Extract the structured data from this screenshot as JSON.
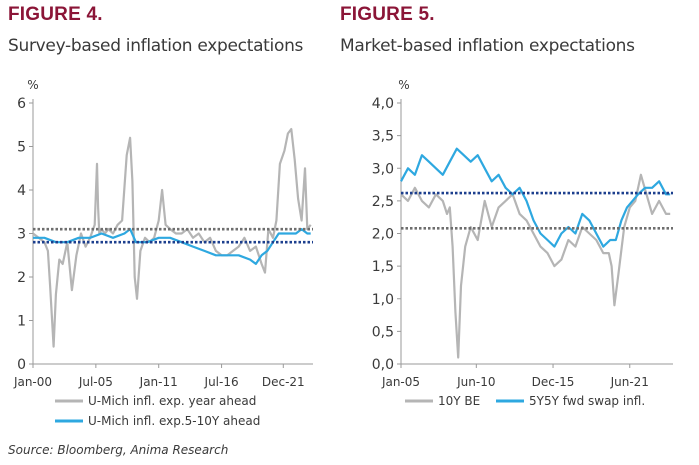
{
  "colors": {
    "brand": "#8b1537",
    "grey_series": "#b5b5b5",
    "blue_series": "#2ea8e0",
    "grey_ref": "#6e6e6e",
    "blue_ref": "#1c3f8e"
  },
  "source": "Source: Bloomberg, Anima Research",
  "chart_data": [
    {
      "type": "line",
      "figure_label": "FIGURE 4.",
      "title": "Survey-based inflation expectations",
      "ylabel": "%",
      "ylim": [
        0,
        6
      ],
      "yticks": [
        "0",
        "1",
        "2",
        "3",
        "4",
        "5",
        "6"
      ],
      "xlim": [
        2000,
        2024.5
      ],
      "xticks": [
        {
          "x": 2000,
          "label": "Jan-00"
        },
        {
          "x": 2005.5,
          "label": "Jul-05"
        },
        {
          "x": 2011,
          "label": "Jan-11"
        },
        {
          "x": 2016.5,
          "label": "Jul-16"
        },
        {
          "x": 2021.9,
          "label": "Dec-21"
        }
      ],
      "legend_position": "bottom",
      "series": [
        {
          "name": "U-Mich infl. exp. year ahead",
          "color": "#b5b5b5",
          "x": [
            2000.0,
            2000.5,
            2001.0,
            2001.3,
            2001.5,
            2001.8,
            2002.0,
            2002.3,
            2002.6,
            2003.0,
            2003.4,
            2003.8,
            2004.2,
            2004.6,
            2005.0,
            2005.4,
            2005.6,
            2005.7,
            2005.8,
            2006.0,
            2006.3,
            2006.6,
            2007.0,
            2007.4,
            2007.8,
            2008.2,
            2008.5,
            2008.7,
            2008.9,
            2009.1,
            2009.4,
            2009.8,
            2010.2,
            2010.6,
            2011.0,
            2011.3,
            2011.6,
            2012.0,
            2012.5,
            2013.0,
            2013.5,
            2014.0,
            2014.5,
            2015.0,
            2015.5,
            2016.0,
            2016.5,
            2017.0,
            2017.5,
            2018.0,
            2018.5,
            2019.0,
            2019.5,
            2020.0,
            2020.3,
            2020.6,
            2021.0,
            2021.3,
            2021.6,
            2022.0,
            2022.3,
            2022.6,
            2022.9,
            2023.2,
            2023.5,
            2023.8,
            2024.0,
            2024.3
          ],
          "values": [
            3.0,
            2.9,
            2.8,
            2.6,
            1.8,
            0.4,
            1.6,
            2.4,
            2.3,
            2.8,
            1.7,
            2.5,
            3.0,
            2.7,
            2.9,
            3.2,
            4.6,
            3.6,
            3.0,
            3.1,
            3.0,
            3.1,
            3.0,
            3.2,
            3.3,
            4.8,
            5.2,
            4.2,
            2.0,
            1.5,
            2.6,
            2.9,
            2.8,
            2.9,
            3.3,
            4.0,
            3.2,
            3.1,
            3.0,
            3.0,
            3.1,
            2.9,
            3.0,
            2.8,
            2.9,
            2.6,
            2.5,
            2.5,
            2.6,
            2.7,
            2.9,
            2.6,
            2.7,
            2.3,
            2.1,
            3.1,
            2.9,
            3.3,
            4.6,
            4.9,
            5.3,
            5.4,
            4.7,
            3.8,
            3.3,
            4.5,
            3.1,
            3.2
          ]
        },
        {
          "name": "U-Mich infl. exp.5-10Y ahead",
          "color": "#2ea8e0",
          "x": [
            2000.0,
            2001.0,
            2002.0,
            2003.0,
            2004.0,
            2005.0,
            2006.0,
            2007.0,
            2008.0,
            2008.5,
            2009.0,
            2010.0,
            2011.0,
            2012.0,
            2013.0,
            2014.0,
            2015.0,
            2016.0,
            2017.0,
            2018.0,
            2019.0,
            2019.5,
            2020.0,
            2020.5,
            2021.0,
            2021.5,
            2022.0,
            2022.5,
            2023.0,
            2023.5,
            2024.0,
            2024.3
          ],
          "values": [
            2.9,
            2.9,
            2.8,
            2.8,
            2.9,
            2.9,
            3.0,
            2.9,
            3.0,
            3.1,
            2.8,
            2.8,
            2.9,
            2.9,
            2.8,
            2.7,
            2.6,
            2.5,
            2.5,
            2.5,
            2.4,
            2.3,
            2.5,
            2.6,
            2.8,
            3.0,
            3.0,
            3.0,
            3.0,
            3.1,
            3.0,
            3.0
          ]
        }
      ],
      "reference_lines": [
        {
          "value": 3.1,
          "color": "#6e6e6e"
        },
        {
          "value": 2.8,
          "color": "#1c3f8e"
        }
      ]
    },
    {
      "type": "line",
      "figure_label": "FIGURE 5.",
      "title": "Market-based inflation expectations",
      "ylabel": "%",
      "ylim": [
        0,
        4
      ],
      "yticks": [
        "0,0",
        "0,5",
        "1,0",
        "1,5",
        "2,0",
        "2,5",
        "3,0",
        "3,5",
        "4,0"
      ],
      "xlim": [
        2005,
        2024.5
      ],
      "xticks": [
        {
          "x": 2005,
          "label": "Jan-05"
        },
        {
          "x": 2010.4,
          "label": "Jun-10"
        },
        {
          "x": 2015.9,
          "label": "Dec-15"
        },
        {
          "x": 2021.4,
          "label": "Jun-21"
        }
      ],
      "legend_position": "bottom",
      "series": [
        {
          "name": "10Y BE",
          "color": "#b5b5b5",
          "x": [
            2005.0,
            2005.5,
            2006.0,
            2006.5,
            2007.0,
            2007.5,
            2008.0,
            2008.3,
            2008.5,
            2008.7,
            2008.9,
            2009.1,
            2009.3,
            2009.6,
            2010.0,
            2010.5,
            2011.0,
            2011.5,
            2012.0,
            2012.5,
            2013.0,
            2013.5,
            2014.0,
            2014.5,
            2015.0,
            2015.5,
            2016.0,
            2016.5,
            2017.0,
            2017.5,
            2018.0,
            2018.5,
            2019.0,
            2019.5,
            2019.9,
            2020.1,
            2020.3,
            2020.6,
            2021.0,
            2021.4,
            2021.8,
            2022.2,
            2022.6,
            2023.0,
            2023.5,
            2024.0,
            2024.3
          ],
          "values": [
            2.6,
            2.5,
            2.7,
            2.5,
            2.4,
            2.6,
            2.5,
            2.3,
            2.4,
            1.8,
            0.8,
            0.1,
            1.2,
            1.8,
            2.1,
            1.9,
            2.5,
            2.1,
            2.4,
            2.5,
            2.6,
            2.3,
            2.2,
            2.0,
            1.8,
            1.7,
            1.5,
            1.6,
            1.9,
            1.8,
            2.1,
            2.0,
            1.9,
            1.7,
            1.7,
            1.5,
            0.9,
            1.4,
            2.1,
            2.4,
            2.5,
            2.9,
            2.6,
            2.3,
            2.5,
            2.3,
            2.3
          ]
        },
        {
          "name": "5Y5Y fwd swap infl.",
          "color": "#2ea8e0",
          "x": [
            2005.0,
            2005.5,
            2006.0,
            2006.5,
            2007.0,
            2007.5,
            2008.0,
            2008.5,
            2009.0,
            2009.5,
            2010.0,
            2010.5,
            2011.0,
            2011.5,
            2012.0,
            2012.5,
            2013.0,
            2013.5,
            2014.0,
            2014.5,
            2015.0,
            2015.5,
            2016.0,
            2016.5,
            2017.0,
            2017.5,
            2018.0,
            2018.5,
            2019.0,
            2019.5,
            2020.0,
            2020.4,
            2020.8,
            2021.2,
            2021.6,
            2022.0,
            2022.5,
            2023.0,
            2023.5,
            2024.0,
            2024.3
          ],
          "values": [
            2.8,
            3.0,
            2.9,
            3.2,
            3.1,
            3.0,
            2.9,
            3.1,
            3.3,
            3.2,
            3.1,
            3.2,
            3.0,
            2.8,
            2.9,
            2.7,
            2.6,
            2.7,
            2.5,
            2.2,
            2.0,
            1.9,
            1.8,
            2.0,
            2.1,
            2.0,
            2.3,
            2.2,
            2.0,
            1.8,
            1.9,
            1.9,
            2.2,
            2.4,
            2.5,
            2.6,
            2.7,
            2.7,
            2.8,
            2.6,
            2.6
          ]
        }
      ],
      "reference_lines": [
        {
          "value": 2.08,
          "color": "#6e6e6e"
        },
        {
          "value": 2.62,
          "color": "#1c3f8e"
        }
      ]
    }
  ]
}
